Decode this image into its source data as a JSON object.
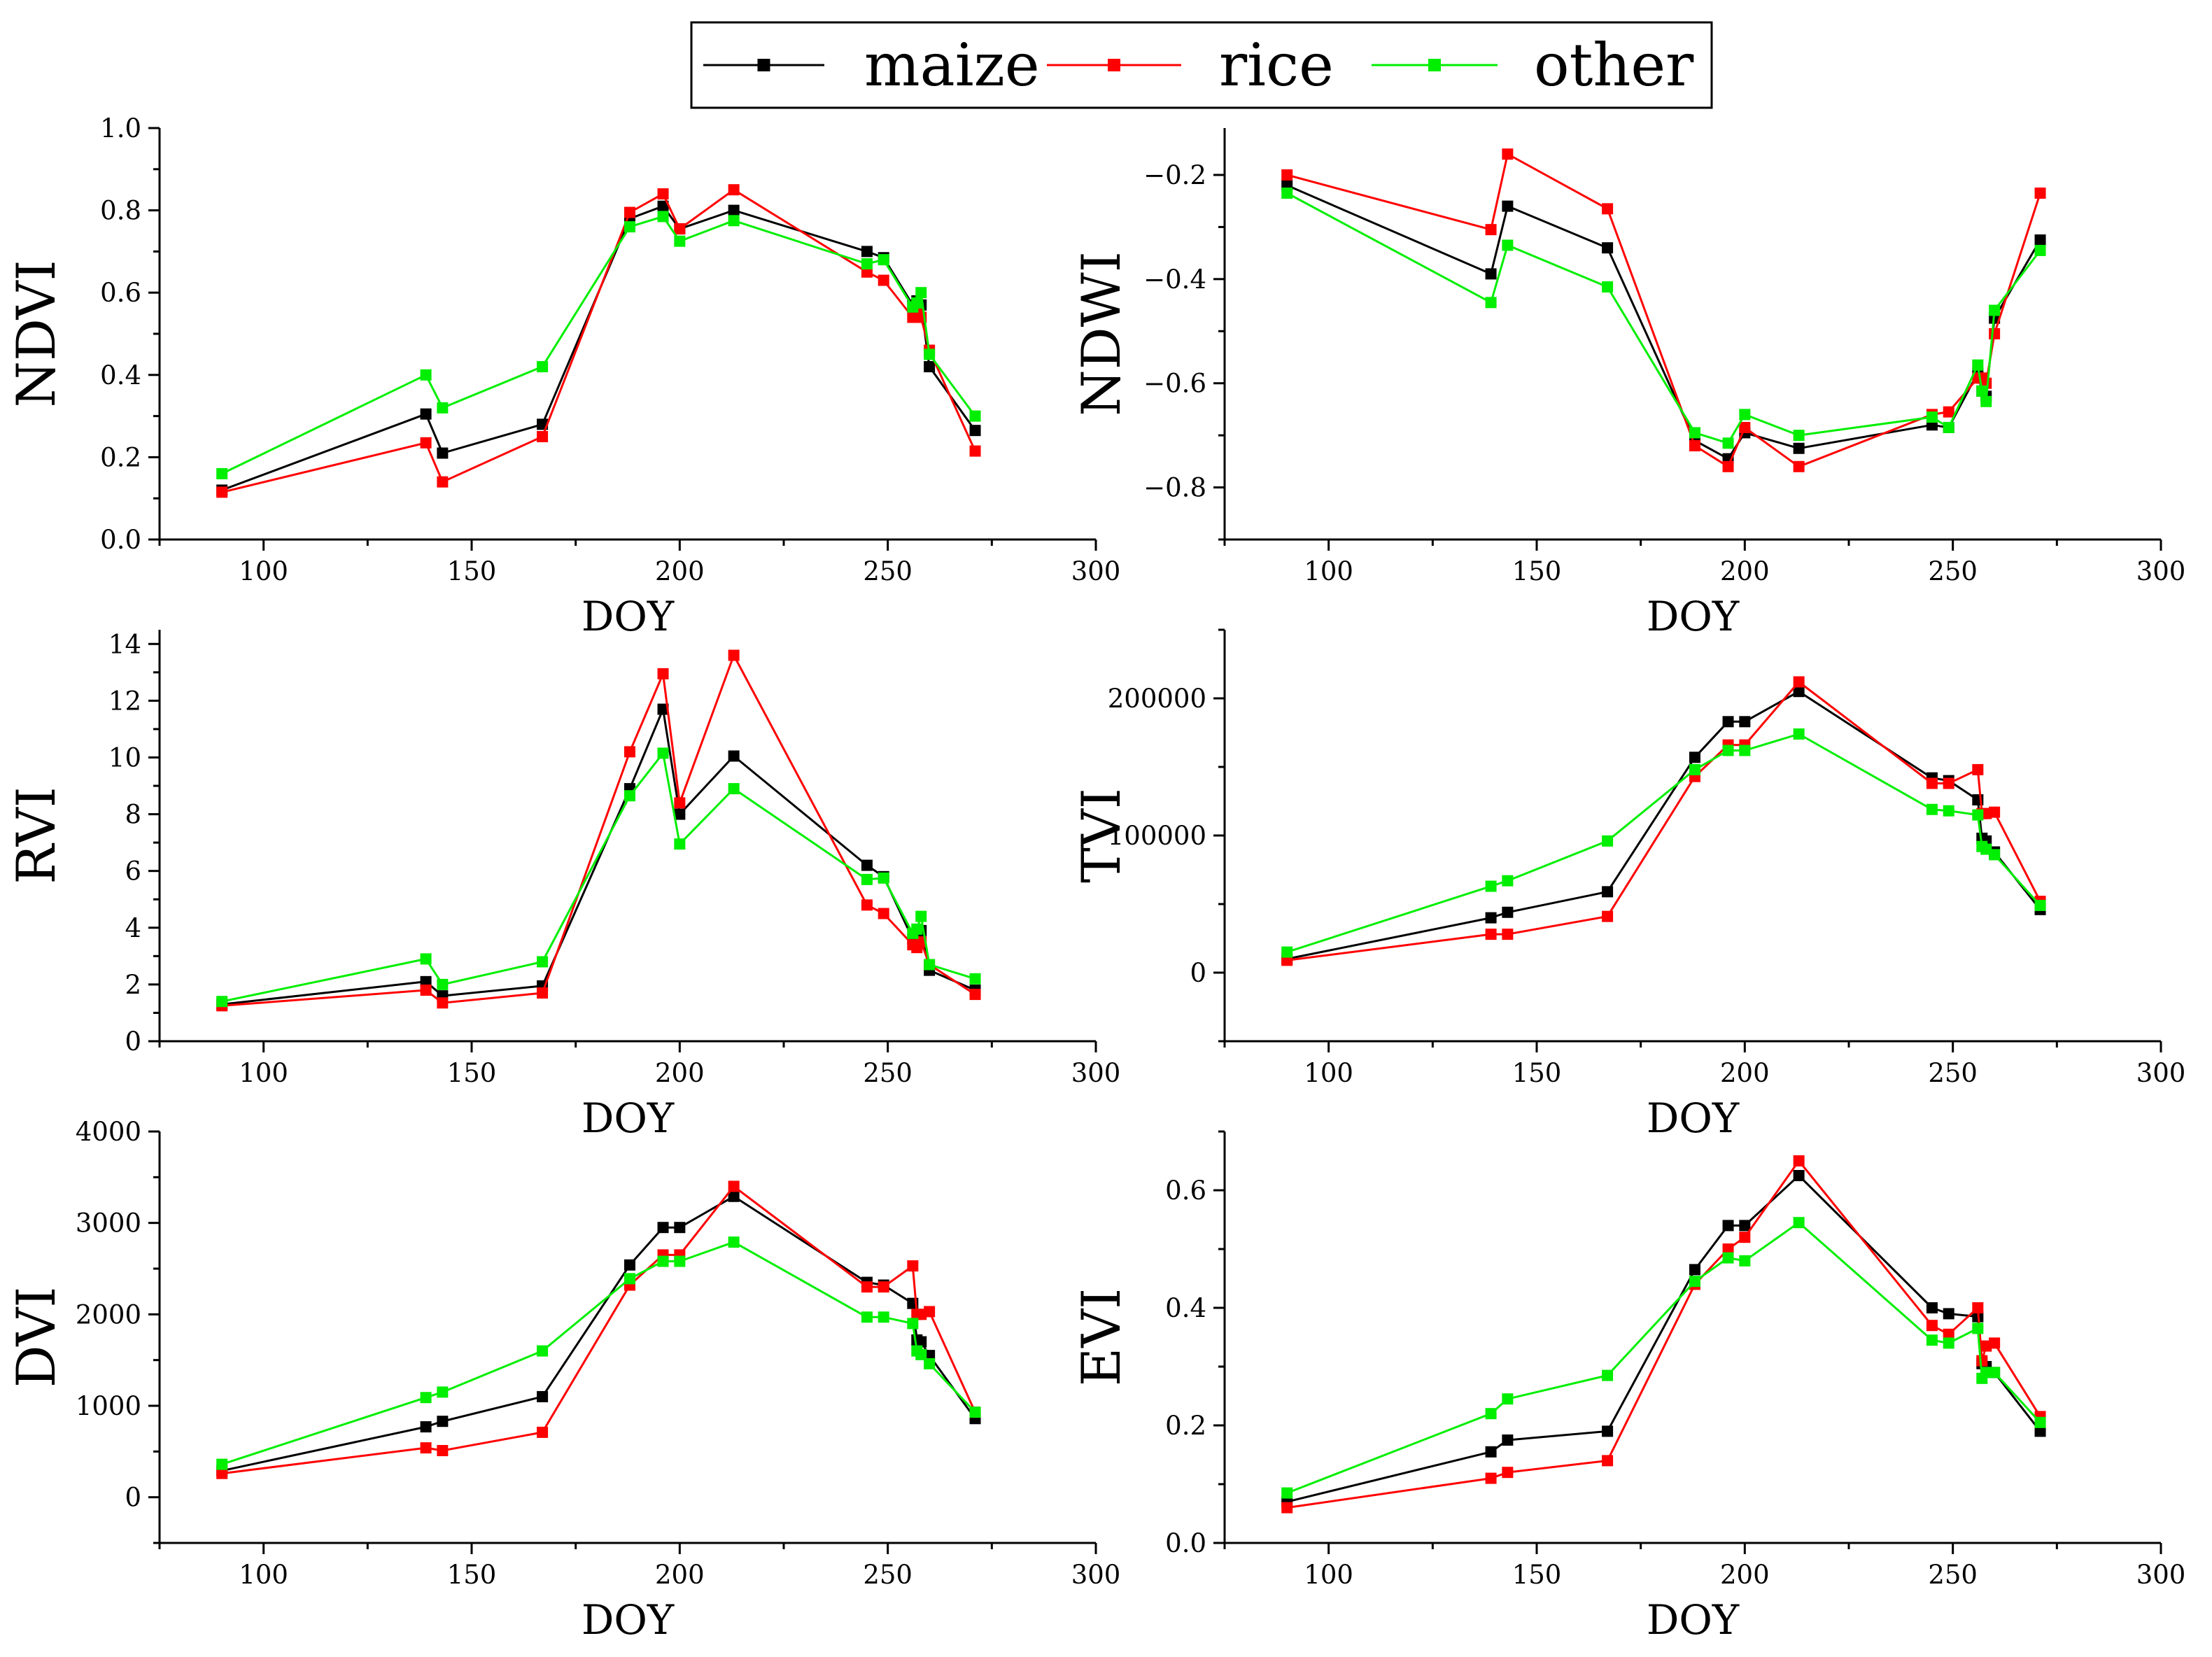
{
  "legend": {
    "entries": [
      {
        "label": "maize",
        "color": "#000000"
      },
      {
        "label": "rice",
        "color": "#ff0000"
      },
      {
        "label": "other",
        "color": "#00ee00"
      }
    ]
  },
  "chart_data": [
    {
      "type": "line",
      "xlabel": "DOY",
      "ylabel": "NDVI",
      "xlim": [
        75,
        300
      ],
      "ylim": [
        0,
        1
      ],
      "xticks": [
        100,
        150,
        200,
        250,
        300
      ],
      "yticks": [
        0,
        0.2,
        0.4,
        0.6,
        0.8,
        1.0
      ],
      "ytick_labels": [
        "0.0",
        "0.2",
        "0.4",
        "0.6",
        "0.8",
        "1.0"
      ],
      "grid": false,
      "x": [
        90,
        139,
        143,
        167,
        188,
        196,
        200,
        213,
        245,
        249,
        256,
        257,
        258,
        260,
        271
      ],
      "series": [
        {
          "name": "maize",
          "color": "#000000",
          "values": [
            0.12,
            0.305,
            0.21,
            0.28,
            0.78,
            0.81,
            0.755,
            0.8,
            0.7,
            0.685,
            0.57,
            0.58,
            0.57,
            0.42,
            0.265
          ]
        },
        {
          "name": "rice",
          "color": "#ff0000",
          "values": [
            0.115,
            0.235,
            0.14,
            0.25,
            0.795,
            0.84,
            0.755,
            0.85,
            0.65,
            0.63,
            0.54,
            0.55,
            0.54,
            0.46,
            0.215
          ]
        },
        {
          "name": "other",
          "color": "#00ee00",
          "values": [
            0.16,
            0.4,
            0.32,
            0.42,
            0.76,
            0.785,
            0.725,
            0.775,
            0.67,
            0.68,
            0.565,
            0.575,
            0.6,
            0.45,
            0.3
          ]
        }
      ]
    },
    {
      "type": "line",
      "xlabel": "DOY",
      "ylabel": "NDWI",
      "xlim": [
        75,
        300
      ],
      "ylim": [
        -0.9,
        -0.11
      ],
      "xticks": [
        100,
        150,
        200,
        250,
        300
      ],
      "yticks": [
        -0.8,
        -0.6,
        -0.4,
        -0.2
      ],
      "ytick_labels": [
        "−0.8",
        "−0.6",
        "−0.4",
        "−0.2"
      ],
      "grid": false,
      "x": [
        90,
        139,
        143,
        167,
        188,
        196,
        200,
        213,
        245,
        249,
        256,
        257,
        258,
        260,
        271
      ],
      "series": [
        {
          "name": "maize",
          "color": "#000000",
          "values": [
            -0.22,
            -0.39,
            -0.26,
            -0.34,
            -0.71,
            -0.745,
            -0.695,
            -0.725,
            -0.68,
            -0.685,
            -0.58,
            -0.615,
            -0.625,
            -0.475,
            -0.325
          ]
        },
        {
          "name": "rice",
          "color": "#ff0000",
          "values": [
            -0.2,
            -0.305,
            -0.16,
            -0.265,
            -0.72,
            -0.76,
            -0.685,
            -0.76,
            -0.66,
            -0.655,
            -0.59,
            -0.59,
            -0.6,
            -0.505,
            -0.235
          ]
        },
        {
          "name": "other",
          "color": "#00ee00",
          "values": [
            -0.235,
            -0.445,
            -0.335,
            -0.415,
            -0.695,
            -0.715,
            -0.66,
            -0.7,
            -0.665,
            -0.685,
            -0.565,
            -0.615,
            -0.635,
            -0.46,
            -0.345
          ]
        }
      ]
    },
    {
      "type": "line",
      "xlabel": "DOY",
      "ylabel": "RVI",
      "xlim": [
        75,
        300
      ],
      "ylim": [
        0,
        14.5
      ],
      "xticks": [
        100,
        150,
        200,
        250,
        300
      ],
      "yticks": [
        0,
        2,
        4,
        6,
        8,
        10,
        12,
        14
      ],
      "ytick_labels": [
        "0",
        "2",
        "4",
        "6",
        "8",
        "10",
        "12",
        "14"
      ],
      "grid": false,
      "x": [
        90,
        139,
        143,
        167,
        188,
        196,
        200,
        213,
        245,
        249,
        256,
        257,
        258,
        260,
        271
      ],
      "series": [
        {
          "name": "maize",
          "color": "#000000",
          "values": [
            1.3,
            2.1,
            1.6,
            1.95,
            8.9,
            11.7,
            8.0,
            10.05,
            6.2,
            5.8,
            3.6,
            3.7,
            3.9,
            2.5,
            1.8
          ]
        },
        {
          "name": "rice",
          "color": "#ff0000",
          "values": [
            1.25,
            1.8,
            1.35,
            1.7,
            10.2,
            12.95,
            8.4,
            13.6,
            4.8,
            4.5,
            3.4,
            3.3,
            3.5,
            2.7,
            1.65
          ]
        },
        {
          "name": "other",
          "color": "#00ee00",
          "values": [
            1.4,
            2.9,
            2.0,
            2.8,
            8.65,
            10.15,
            6.95,
            8.9,
            5.7,
            5.75,
            3.8,
            3.95,
            4.4,
            2.7,
            2.2
          ]
        }
      ]
    },
    {
      "type": "line",
      "xlabel": "DOY",
      "ylabel": "TVI",
      "xlim": [
        75,
        300
      ],
      "ylim": [
        -50000,
        250000
      ],
      "xticks": [
        100,
        150,
        200,
        250,
        300
      ],
      "yticks": [
        0,
        100000,
        200000
      ],
      "ytick_labels": [
        "0",
        "100000",
        "200000"
      ],
      "grid": false,
      "x": [
        90,
        139,
        143,
        167,
        188,
        196,
        200,
        213,
        245,
        249,
        256,
        257,
        258,
        260,
        271
      ],
      "series": [
        {
          "name": "maize",
          "color": "#000000",
          "values": [
            10000,
            40000,
            44000,
            59000,
            157000,
            183000,
            183000,
            205000,
            142000,
            140000,
            126000,
            98000,
            96000,
            88000,
            46000
          ]
        },
        {
          "name": "rice",
          "color": "#ff0000",
          "values": [
            9000,
            28000,
            28000,
            41000,
            143000,
            166000,
            166000,
            212000,
            138000,
            138000,
            148000,
            116000,
            116000,
            117000,
            52000
          ]
        },
        {
          "name": "other",
          "color": "#00ee00",
          "values": [
            15000,
            63000,
            67000,
            96000,
            148000,
            162000,
            162000,
            174000,
            119000,
            118000,
            115000,
            92000,
            90000,
            86000,
            49000
          ]
        }
      ]
    },
    {
      "type": "line",
      "xlabel": "DOY",
      "ylabel": "DVI",
      "xlim": [
        75,
        300
      ],
      "ylim": [
        -500,
        4000
      ],
      "xticks": [
        100,
        150,
        200,
        250,
        300
      ],
      "yticks": [
        0,
        1000,
        2000,
        3000,
        4000
      ],
      "ytick_labels": [
        "0",
        "1000",
        "2000",
        "3000",
        "4000"
      ],
      "grid": false,
      "x": [
        90,
        139,
        143,
        167,
        188,
        196,
        200,
        213,
        245,
        249,
        256,
        257,
        258,
        260,
        271
      ],
      "series": [
        {
          "name": "maize",
          "color": "#000000",
          "values": [
            290,
            770,
            830,
            1100,
            2540,
            2950,
            2950,
            3290,
            2350,
            2320,
            2120,
            1720,
            1700,
            1550,
            860
          ]
        },
        {
          "name": "rice",
          "color": "#ff0000",
          "values": [
            260,
            540,
            510,
            710,
            2320,
            2650,
            2650,
            3400,
            2300,
            2300,
            2530,
            2000,
            2000,
            2030,
            930
          ]
        },
        {
          "name": "other",
          "color": "#00ee00",
          "values": [
            360,
            1090,
            1150,
            1600,
            2390,
            2580,
            2580,
            2790,
            1970,
            1970,
            1900,
            1600,
            1560,
            1460,
            930
          ]
        }
      ]
    },
    {
      "type": "line",
      "xlabel": "DOY",
      "ylabel": "EVI",
      "xlim": [
        75,
        300
      ],
      "ylim": [
        0,
        0.7
      ],
      "xticks": [
        100,
        150,
        200,
        250,
        300
      ],
      "yticks": [
        0,
        0.2,
        0.4,
        0.6
      ],
      "ytick_labels": [
        "0.0",
        "0.2",
        "0.4",
        "0.6"
      ],
      "grid": false,
      "x": [
        90,
        139,
        143,
        167,
        188,
        196,
        200,
        213,
        245,
        249,
        256,
        257,
        258,
        260,
        271
      ],
      "series": [
        {
          "name": "maize",
          "color": "#000000",
          "values": [
            0.07,
            0.155,
            0.175,
            0.19,
            0.465,
            0.54,
            0.54,
            0.625,
            0.4,
            0.39,
            0.385,
            0.305,
            0.3,
            0.29,
            0.19
          ]
        },
        {
          "name": "rice",
          "color": "#ff0000",
          "values": [
            0.06,
            0.11,
            0.12,
            0.14,
            0.44,
            0.5,
            0.52,
            0.65,
            0.37,
            0.355,
            0.4,
            0.31,
            0.335,
            0.34,
            0.215
          ]
        },
        {
          "name": "other",
          "color": "#00ee00",
          "values": [
            0.085,
            0.22,
            0.245,
            0.285,
            0.445,
            0.485,
            0.48,
            0.545,
            0.345,
            0.34,
            0.365,
            0.28,
            0.29,
            0.29,
            0.205
          ]
        }
      ]
    }
  ]
}
